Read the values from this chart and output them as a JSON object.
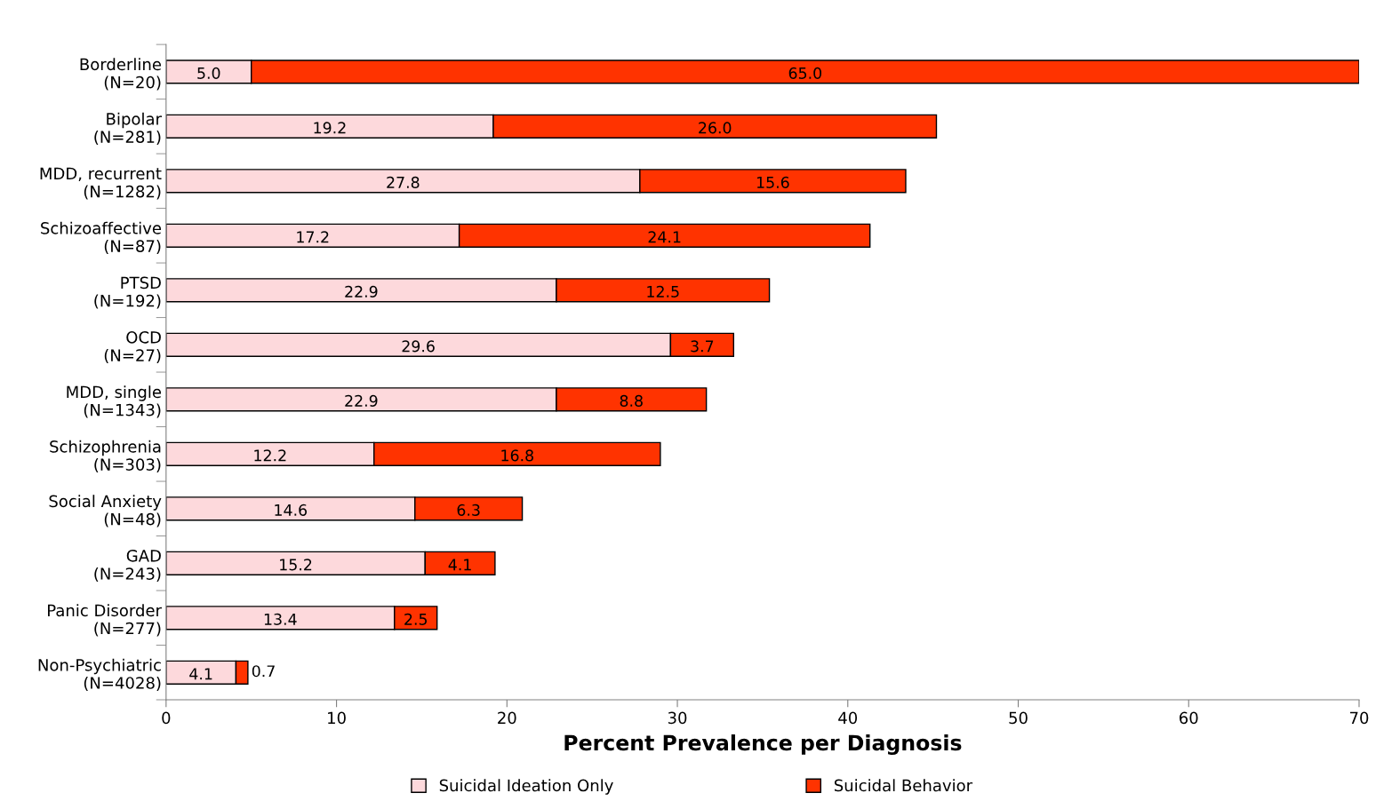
{
  "chart_data": {
    "type": "bar",
    "orientation": "horizontal",
    "stacked": true,
    "xlabel": "Percent Prevalence per Diagnosis",
    "categories": [
      "Borderline\n(N=20)",
      "Bipolar\n(N=281)",
      "MDD, recurrent\n(N=1282)",
      "Schizoaffective\n(N=87)",
      "PTSD\n(N=192)",
      "OCD\n(N=27)",
      "MDD, single\n(N=1343)",
      "Schizophrenia\n(N=303)",
      "Social Anxiety\n(N=48)",
      "GAD\n(N=243)",
      "Panic Disorder\n(N=277)",
      "Non-Psychiatric\n(N=4028)"
    ],
    "series": [
      {
        "name": "Suicidal Ideation Only",
        "color": "#fdd9dc",
        "values": [
          5.0,
          19.2,
          27.8,
          17.2,
          22.9,
          29.6,
          22.9,
          12.2,
          14.6,
          15.2,
          13.4,
          4.1
        ],
        "value_labels": [
          "5.0",
          "19.2",
          "27.8",
          "17.2",
          "22.9",
          "29.6",
          "22.9",
          "12.2",
          "14.6",
          "15.2",
          "13.4",
          "4.1"
        ]
      },
      {
        "name": "Suicidal Behavior",
        "color": "#ff3300",
        "values": [
          65.0,
          26.0,
          15.6,
          24.1,
          12.5,
          3.7,
          8.8,
          16.8,
          6.3,
          4.1,
          2.5,
          0.7
        ],
        "value_labels": [
          "65.0",
          "26.0",
          "15.6",
          "24.1",
          "12.5",
          "3.7",
          "8.8",
          "16.8",
          "6.3",
          "4.1",
          "2.5",
          "0.7"
        ]
      }
    ],
    "xlim": [
      0,
      70
    ],
    "xticks": [
      0,
      10,
      20,
      30,
      40,
      50,
      60,
      70
    ],
    "legend": "bottom",
    "grid": false
  }
}
